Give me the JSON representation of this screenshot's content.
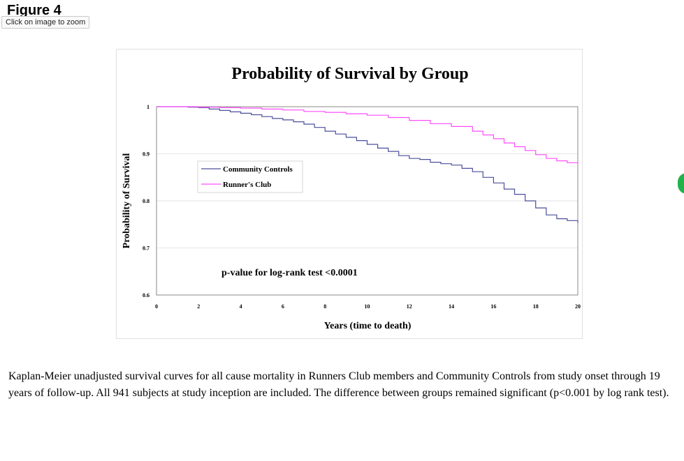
{
  "page": {
    "figure_label": "Figure 4",
    "zoom_hint": "Click on image to zoom",
    "caption": "Kaplan-Meier unadjusted survival curves for all cause mortality in Runners Club members and Community Controls from study onset through 19 years of follow-up. All 941 subjects at study inception are included. The difference between groups remained significant (p<0.001 by log rank test)."
  },
  "chart_data": {
    "type": "line",
    "title": "Probability of Survival by Group",
    "xlabel": "Years (time to death)",
    "ylabel": "Probability of Survival",
    "xlim": [
      0,
      20
    ],
    "ylim": [
      0.6,
      1
    ],
    "x_ticks": [
      "0",
      "2",
      "4",
      "6",
      "8",
      "10",
      "12",
      "14",
      "16",
      "18",
      "20"
    ],
    "y_ticks": [
      "0.6",
      "0.7",
      "0.8",
      "0.9",
      "1"
    ],
    "grid": "horizontal",
    "legend_position": "upper-left",
    "annotation": "p-value for log-rank test <0.0001",
    "colors": {
      "Community Controls": "#4a4f9a",
      "Runner's Club": "#ff4dff",
      "axes": "#888888"
    },
    "series": [
      {
        "name": "Community Controls",
        "x": [
          0,
          1,
          1.5,
          2,
          2.5,
          3,
          3.5,
          4,
          4.5,
          5,
          5.5,
          6,
          6.5,
          7,
          7.5,
          8,
          8.5,
          9,
          9.5,
          10,
          10.5,
          11,
          11.5,
          12,
          12.5,
          13,
          13.5,
          14,
          14.5,
          15,
          15.5,
          16,
          16.5,
          17,
          17.5,
          18,
          18.5,
          19,
          19.5,
          20
        ],
        "values": [
          1.0,
          1.0,
          0.999,
          0.998,
          0.995,
          0.992,
          0.989,
          0.986,
          0.983,
          0.979,
          0.975,
          0.972,
          0.968,
          0.963,
          0.956,
          0.948,
          0.942,
          0.935,
          0.928,
          0.92,
          0.912,
          0.905,
          0.896,
          0.89,
          0.888,
          0.882,
          0.879,
          0.876,
          0.869,
          0.862,
          0.85,
          0.838,
          0.825,
          0.814,
          0.8,
          0.785,
          0.77,
          0.762,
          0.758,
          0.753
        ]
      },
      {
        "name": "Runner's Club",
        "x": [
          0,
          1,
          2,
          3,
          4,
          5,
          6,
          7,
          8,
          9,
          10,
          11,
          12,
          13,
          14,
          15,
          15.5,
          16,
          16.5,
          17,
          17.5,
          18,
          18.5,
          19,
          19.5,
          20
        ],
        "values": [
          1.0,
          1.0,
          0.999,
          0.998,
          0.997,
          0.995,
          0.993,
          0.99,
          0.988,
          0.985,
          0.982,
          0.977,
          0.971,
          0.964,
          0.958,
          0.948,
          0.94,
          0.932,
          0.923,
          0.915,
          0.907,
          0.898,
          0.89,
          0.885,
          0.881,
          0.877
        ]
      }
    ]
  }
}
